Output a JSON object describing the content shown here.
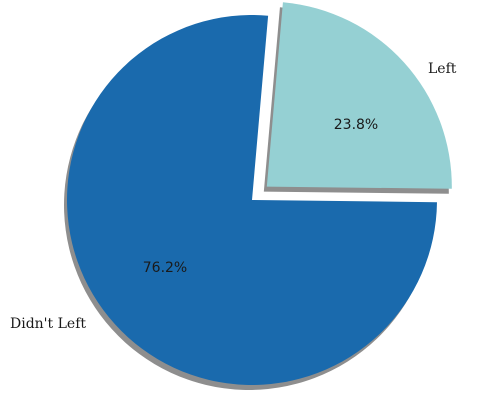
{
  "chart_data": {
    "type": "pie",
    "title": "",
    "categories": [
      "Didn't Left",
      "Left"
    ],
    "values": [
      76.2,
      23.8
    ],
    "labels": [
      "Didn't Left",
      "Left"
    ],
    "percent_labels": [
      "76.2%",
      "23.8%"
    ],
    "colors": [
      "#1a6aad",
      "#95d0d3"
    ],
    "shadow_color": "#8e8e8e",
    "exploded": [
      "Left"
    ],
    "shadow": true,
    "legend": "none"
  }
}
